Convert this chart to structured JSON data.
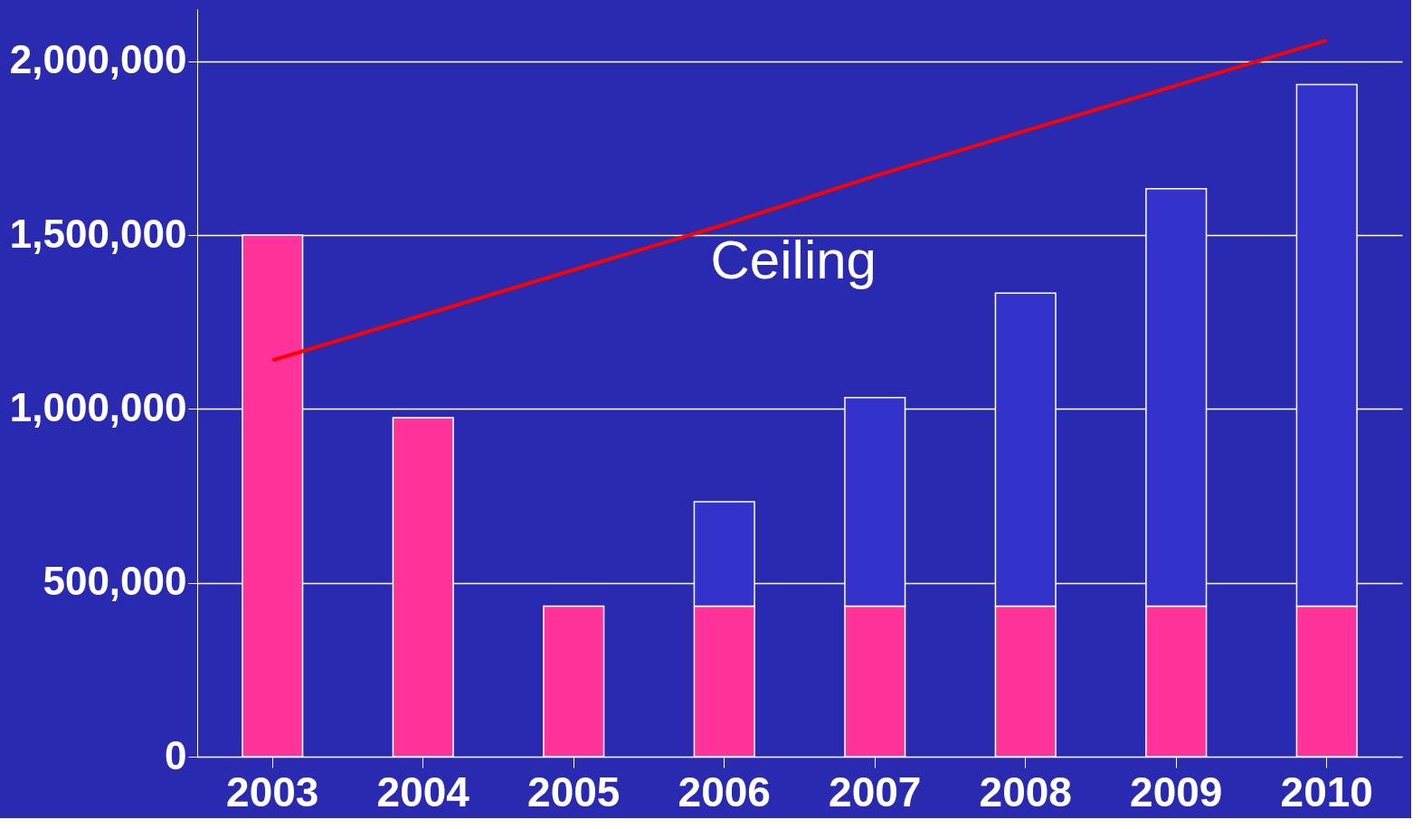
{
  "chart_data": {
    "type": "bar",
    "stacked": true,
    "categories": [
      "2003",
      "2004",
      "2005",
      "2006",
      "2007",
      "2008",
      "2009",
      "2010"
    ],
    "series": [
      {
        "color": "#ff3399",
        "values": [
          1500000,
          975000,
          433000,
          433000,
          433000,
          433000,
          433000,
          433000
        ]
      },
      {
        "color": "#3333cc",
        "values": [
          null,
          null,
          null,
          300000,
          600000,
          900000,
          1200000,
          1500000
        ]
      },
      {
        "name": "Ceiling",
        "type": "line",
        "color": "#ff0000",
        "values": [
          1140000,
          1270000,
          1400000,
          1530000,
          1670000,
          1800000,
          1930000,
          2060000
        ]
      }
    ],
    "ylim": [
      0,
      2150000
    ],
    "yticks": [
      0,
      {
        "value": 500000,
        "label": "500,000"
      },
      {
        "value": 1000000,
        "label": "1,000,000"
      },
      {
        "value": 1500000,
        "label": "1,500,000"
      },
      {
        "value": 2000000,
        "label": "2,000,000"
      }
    ],
    "grid": "y"
  }
}
